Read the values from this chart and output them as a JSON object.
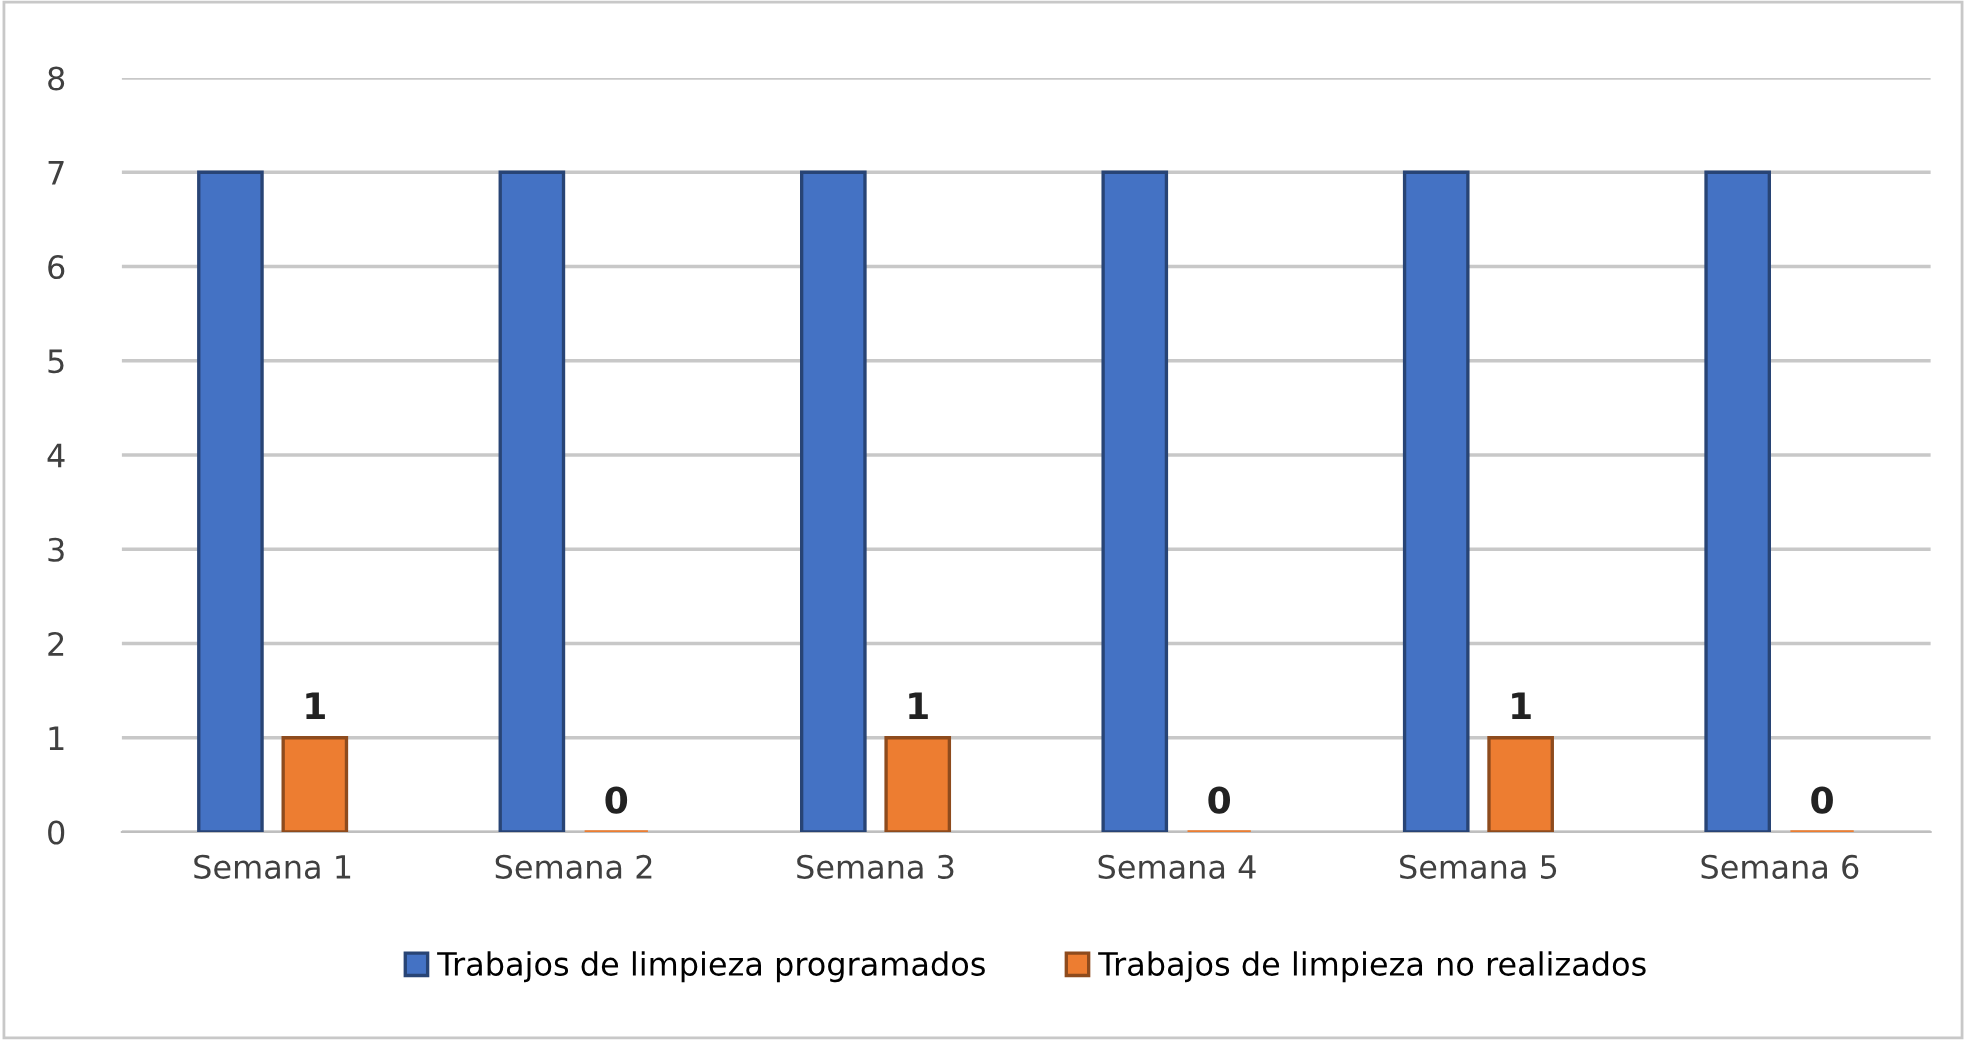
{
  "chart_data": {
    "type": "bar",
    "categories": [
      "Semana 1",
      "Semana 2",
      "Semana 3",
      "Semana 4",
      "Semana 5",
      "Semana 6"
    ],
    "series": [
      {
        "name": "Trabajos de limpieza programados",
        "color": "#4472c4",
        "values": [
          7,
          7,
          7,
          7,
          7,
          7
        ]
      },
      {
        "name": "Trabajos de limpieza no realizados",
        "color": "#ed7d31",
        "values": [
          1,
          0,
          1,
          0,
          1,
          0
        ],
        "value_labels": [
          "1",
          "0",
          "1",
          "0",
          "1",
          "0"
        ]
      }
    ],
    "ylim": [
      0,
      8
    ],
    "yticks": [
      0,
      1,
      2,
      3,
      4,
      5,
      6,
      7,
      8
    ],
    "grid": "y",
    "legend": "bottom"
  }
}
